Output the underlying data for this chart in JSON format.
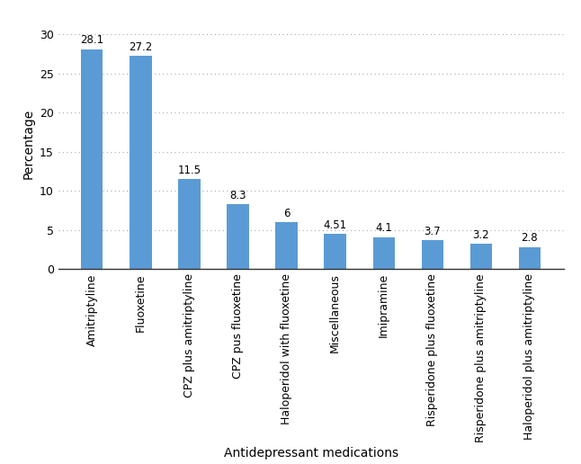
{
  "categories": [
    "Amitriptyline",
    "Fluoxetine",
    "CPZ plus amitriptyline",
    "CPZ pus fluoxetine",
    "Haloperidol with fluoxetine",
    "Miscellaneous",
    "Imipramine",
    "Risperidone plus fluoxetine",
    "Risperidone plus amitriptyline",
    "Haloperidol plus amitriptyline"
  ],
  "values": [
    28.1,
    27.2,
    11.5,
    8.3,
    6,
    4.51,
    4.1,
    3.7,
    3.2,
    2.8
  ],
  "bar_color": "#5b9bd5",
  "xlabel": "Antidepressant medications",
  "ylabel": "Percentage",
  "ylim": [
    0,
    32
  ],
  "yticks": [
    0,
    5,
    10,
    15,
    20,
    25,
    30
  ],
  "background_color": "#ffffff",
  "grid_color": "#aaaaaa",
  "tick_fontsize": 9,
  "xlabel_fontsize": 10,
  "ylabel_fontsize": 10,
  "value_label_fontsize": 8.5,
  "bar_width": 0.45
}
